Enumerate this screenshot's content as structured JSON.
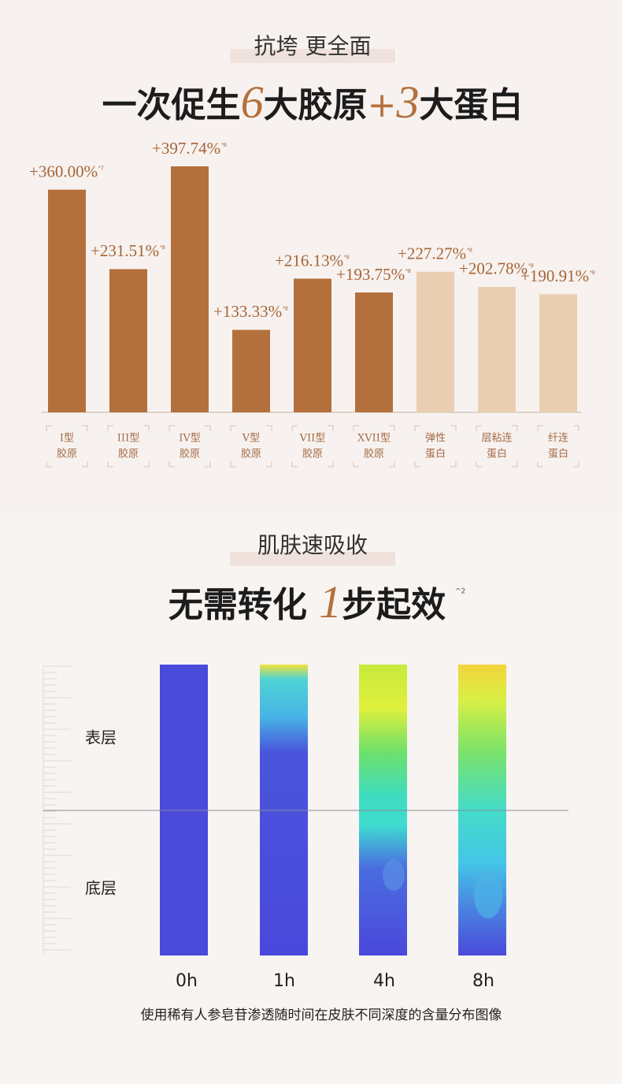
{
  "header": {
    "subtitle": "抗垮 更全面",
    "headline": [
      "一次促生",
      "6",
      "大胶原",
      "+",
      "3",
      "大蛋白"
    ]
  },
  "chart_data": {
    "type": "bar",
    "categories": [
      [
        "I型",
        "胶原"
      ],
      [
        "III型",
        "胶原"
      ],
      [
        "IV型",
        "胶原"
      ],
      [
        "V型",
        "胶原"
      ],
      [
        "VII型",
        "胶原"
      ],
      [
        "XVII型",
        "胶原"
      ],
      [
        "弹性",
        "蛋白"
      ],
      [
        "层粘连",
        "蛋白"
      ],
      [
        "纤连",
        "蛋白"
      ]
    ],
    "values": [
      360.0,
      231.51,
      397.74,
      133.33,
      216.13,
      193.75,
      227.27,
      202.78,
      190.91
    ],
    "value_labels": [
      "+360.00%",
      "+231.51%",
      "+397.74%",
      "+133.33%",
      "+216.13%",
      "+193.75%",
      "+227.27%",
      "+202.78%",
      "+190.91%"
    ],
    "footnotes": [
      "*7",
      "*8",
      "*8",
      "*8",
      "*8",
      "*8",
      "*8",
      "*8",
      "*8"
    ],
    "colors": [
      "#b4703c",
      "#b4703c",
      "#b4703c",
      "#b4703c",
      "#b4703c",
      "#b4703c",
      "#e9ceb1",
      "#e9ceb1",
      "#e9ceb1"
    ]
  },
  "absorption": {
    "subtitle": "肌肤速吸收",
    "headline": [
      "无需转化 ",
      "1",
      "步起效"
    ],
    "footnote": "^2",
    "layers": [
      "表层",
      "底层"
    ],
    "times": [
      "0h",
      "1h",
      "4h",
      "8h"
    ],
    "caption": "使用稀有人参皂苷渗透随时间在皮肤不同深度的含量分布图像"
  }
}
